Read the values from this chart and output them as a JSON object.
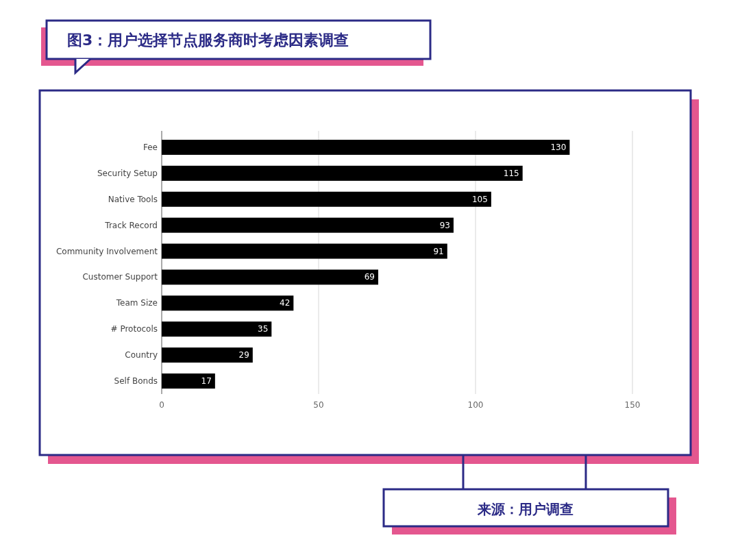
{
  "chart_data": {
    "type": "bar",
    "orientation": "horizontal",
    "title": "图3：用户选择节点服务商时考虑因素调查",
    "categories": [
      "Fee",
      "Security Setup",
      "Native Tools",
      "Track Record",
      "Community Involvement",
      "Customer Support",
      "Team Size",
      "# Protocols",
      "Country",
      "Self Bonds"
    ],
    "values": [
      130,
      115,
      105,
      93,
      91,
      69,
      42,
      35,
      29,
      17
    ],
    "color": "#000000",
    "xlim": [
      0,
      150
    ],
    "xticks": [
      0,
      50,
      100,
      150
    ],
    "grid": "x",
    "data_labels": true,
    "annotations": [
      "来源：用户调查"
    ]
  }
}
